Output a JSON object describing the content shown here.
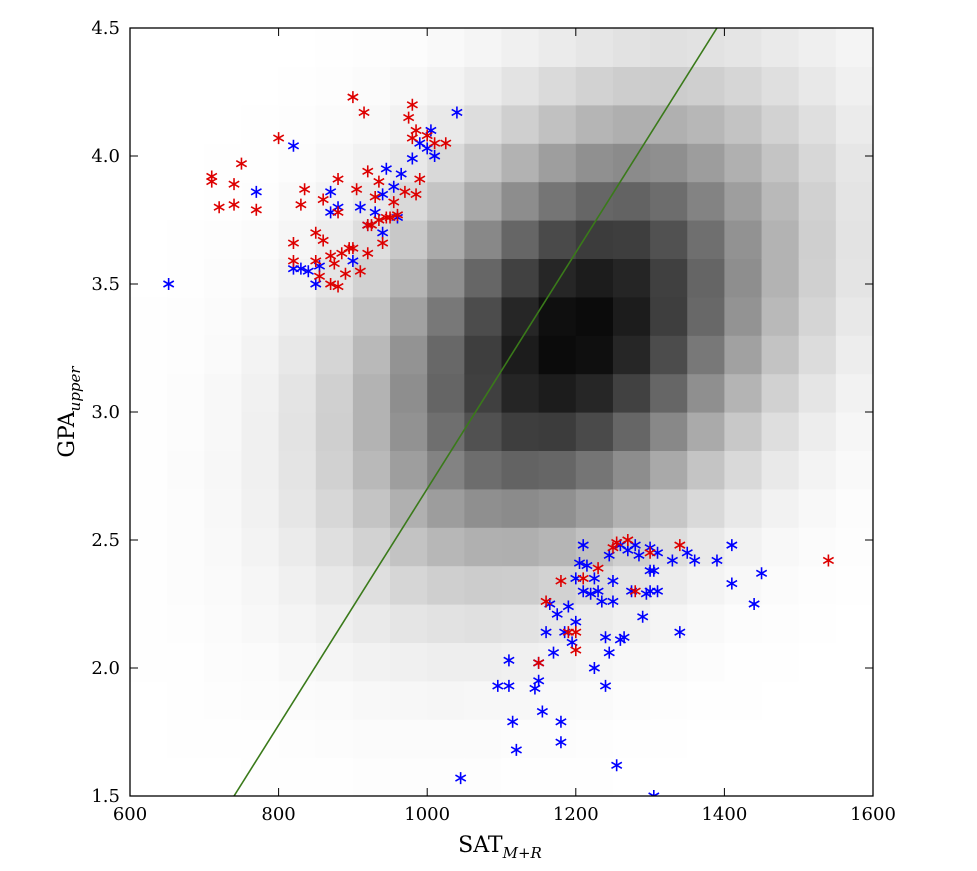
{
  "chart_data": {
    "type": "scatter",
    "title": "",
    "xlabel": {
      "main": "SAT",
      "sub": "M+R"
    },
    "ylabel": {
      "main": "GPA",
      "sub": "upper"
    },
    "xlim": [
      600,
      1600
    ],
    "ylim": [
      1.5,
      4.5
    ],
    "xticks": [
      "600",
      "800",
      "1000",
      "1200",
      "1400",
      "1600"
    ],
    "yticks": [
      "1.5",
      "2.0",
      "2.5",
      "3.0",
      "3.5",
      "4.0",
      "4.5"
    ],
    "grid": false,
    "legend": "none",
    "density_background": {
      "x_bin_edges": [
        600,
        650,
        700,
        750,
        800,
        850,
        900,
        950,
        1000,
        1050,
        1100,
        1150,
        1200,
        1250,
        1300,
        1350,
        1400,
        1450,
        1500,
        1550,
        1600
      ],
      "y_bin_edges": [
        1.5,
        1.65,
        1.8,
        1.95,
        2.1,
        2.25,
        2.4,
        2.55,
        2.7,
        2.85,
        3.0,
        3.15,
        3.3,
        3.45,
        3.6,
        3.75,
        3.9,
        4.05,
        4.2,
        4.35,
        4.5
      ],
      "mean": [
        1200,
        3.3
      ],
      "sd": [
        180,
        0.55
      ],
      "correlation": 0.35,
      "colormap": "white-to-black"
    },
    "fit_line": {
      "color": "#3a7a1a",
      "points": [
        [
          740,
          1.5
        ],
        [
          1390,
          4.5
        ]
      ]
    },
    "series": [
      {
        "color": "#0000ff",
        "marker": "asterisk",
        "points": [
          [
            652,
            3.5
          ],
          [
            770,
            3.86
          ],
          [
            820,
            4.04
          ],
          [
            820,
            3.56
          ],
          [
            830,
            3.56
          ],
          [
            840,
            3.55
          ],
          [
            850,
            3.5
          ],
          [
            855,
            3.57
          ],
          [
            870,
            3.78
          ],
          [
            870,
            3.86
          ],
          [
            880,
            3.8
          ],
          [
            900,
            3.59
          ],
          [
            910,
            3.8
          ],
          [
            920,
            3.73
          ],
          [
            930,
            3.78
          ],
          [
            940,
            3.7
          ],
          [
            940,
            3.85
          ],
          [
            945,
            3.95
          ],
          [
            955,
            3.88
          ],
          [
            960,
            3.76
          ],
          [
            965,
            3.93
          ],
          [
            980,
            3.99
          ],
          [
            990,
            4.05
          ],
          [
            1000,
            4.03
          ],
          [
            1005,
            4.1
          ],
          [
            1010,
            4.0
          ],
          [
            1040,
            4.17
          ],
          [
            1045,
            1.57
          ],
          [
            1095,
            1.93
          ],
          [
            1110,
            1.93
          ],
          [
            1110,
            2.03
          ],
          [
            1115,
            1.79
          ],
          [
            1120,
            1.68
          ],
          [
            1145,
            1.92
          ],
          [
            1150,
            2.02
          ],
          [
            1150,
            1.95
          ],
          [
            1155,
            1.83
          ],
          [
            1160,
            2.14
          ],
          [
            1165,
            2.25
          ],
          [
            1170,
            2.06
          ],
          [
            1175,
            2.21
          ],
          [
            1180,
            1.79
          ],
          [
            1180,
            1.71
          ],
          [
            1185,
            2.14
          ],
          [
            1190,
            2.24
          ],
          [
            1195,
            2.1
          ],
          [
            1200,
            2.18
          ],
          [
            1200,
            2.35
          ],
          [
            1205,
            2.41
          ],
          [
            1210,
            2.48
          ],
          [
            1210,
            2.3
          ],
          [
            1215,
            2.4
          ],
          [
            1220,
            2.29
          ],
          [
            1225,
            2.35
          ],
          [
            1225,
            2.0
          ],
          [
            1230,
            2.3
          ],
          [
            1235,
            2.26
          ],
          [
            1240,
            1.93
          ],
          [
            1240,
            2.12
          ],
          [
            1245,
            2.06
          ],
          [
            1245,
            2.44
          ],
          [
            1250,
            2.26
          ],
          [
            1250,
            2.34
          ],
          [
            1255,
            1.62
          ],
          [
            1260,
            2.48
          ],
          [
            1260,
            2.11
          ],
          [
            1265,
            2.12
          ],
          [
            1270,
            2.46
          ],
          [
            1275,
            2.3
          ],
          [
            1280,
            2.48
          ],
          [
            1285,
            2.44
          ],
          [
            1290,
            2.2
          ],
          [
            1295,
            2.29
          ],
          [
            1300,
            2.38
          ],
          [
            1300,
            2.47
          ],
          [
            1300,
            2.3
          ],
          [
            1305,
            2.38
          ],
          [
            1305,
            1.5
          ],
          [
            1310,
            2.3
          ],
          [
            1310,
            2.45
          ],
          [
            1330,
            2.42
          ],
          [
            1340,
            2.14
          ],
          [
            1350,
            2.45
          ],
          [
            1360,
            2.42
          ],
          [
            1390,
            2.42
          ],
          [
            1410,
            2.48
          ],
          [
            1410,
            2.33
          ],
          [
            1440,
            2.25
          ],
          [
            1450,
            2.37
          ]
        ]
      },
      {
        "color": "#dd0000",
        "marker": "asterisk",
        "points": [
          [
            710,
            3.92
          ],
          [
            710,
            3.9
          ],
          [
            720,
            3.8
          ],
          [
            740,
            3.89
          ],
          [
            740,
            3.81
          ],
          [
            750,
            3.97
          ],
          [
            770,
            3.79
          ],
          [
            800,
            4.07
          ],
          [
            820,
            3.66
          ],
          [
            820,
            3.59
          ],
          [
            830,
            3.81
          ],
          [
            835,
            3.87
          ],
          [
            850,
            3.7
          ],
          [
            850,
            3.59
          ],
          [
            855,
            3.53
          ],
          [
            860,
            3.67
          ],
          [
            860,
            3.83
          ],
          [
            870,
            3.61
          ],
          [
            870,
            3.5
          ],
          [
            875,
            3.58
          ],
          [
            880,
            3.91
          ],
          [
            880,
            3.78
          ],
          [
            880,
            3.49
          ],
          [
            885,
            3.62
          ],
          [
            890,
            3.54
          ],
          [
            895,
            3.64
          ],
          [
            900,
            3.64
          ],
          [
            900,
            4.23
          ],
          [
            905,
            3.87
          ],
          [
            910,
            3.55
          ],
          [
            915,
            4.17
          ],
          [
            920,
            3.73
          ],
          [
            920,
            3.94
          ],
          [
            920,
            3.62
          ],
          [
            925,
            3.73
          ],
          [
            930,
            3.84
          ],
          [
            935,
            3.75
          ],
          [
            935,
            3.9
          ],
          [
            940,
            3.66
          ],
          [
            945,
            3.76
          ],
          [
            950,
            3.76
          ],
          [
            955,
            3.82
          ],
          [
            960,
            3.77
          ],
          [
            970,
            3.86
          ],
          [
            975,
            4.15
          ],
          [
            980,
            4.2
          ],
          [
            985,
            4.1
          ],
          [
            980,
            4.07
          ],
          [
            985,
            3.85
          ],
          [
            990,
            3.91
          ],
          [
            1000,
            4.08
          ],
          [
            1010,
            4.05
          ],
          [
            1025,
            4.05
          ],
          [
            1150,
            2.02
          ],
          [
            1160,
            2.26
          ],
          [
            1180,
            2.34
          ],
          [
            1190,
            2.14
          ],
          [
            1200,
            2.14
          ],
          [
            1200,
            2.07
          ],
          [
            1210,
            2.35
          ],
          [
            1230,
            2.39
          ],
          [
            1250,
            2.47
          ],
          [
            1255,
            2.49
          ],
          [
            1270,
            2.5
          ],
          [
            1280,
            2.3
          ],
          [
            1300,
            2.45
          ],
          [
            1340,
            2.48
          ],
          [
            1540,
            2.42
          ]
        ]
      }
    ]
  }
}
